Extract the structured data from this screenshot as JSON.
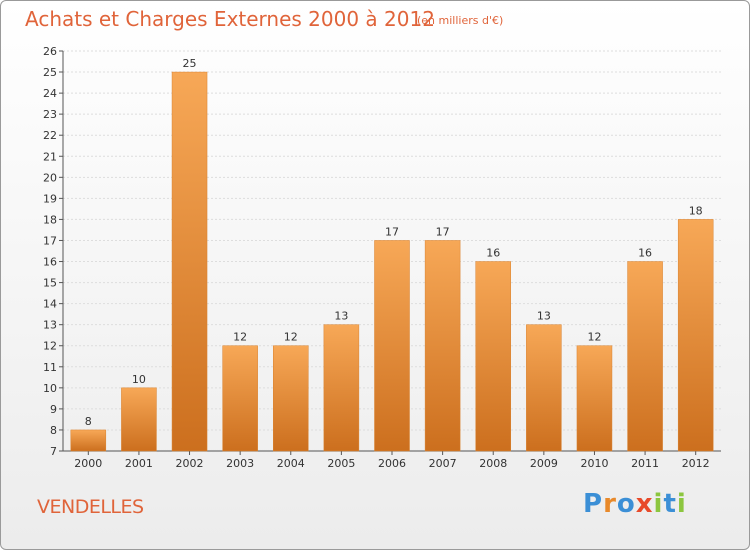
{
  "title": "Achats et Charges Externes 2000 à 2012",
  "subtitle": "(en milliers d'€)",
  "commune": "VENDELLES",
  "logo": {
    "letters": [
      "P",
      "r",
      "o",
      "x",
      "i",
      "t",
      "i"
    ],
    "colors": [
      "#3b8fd6",
      "#e8892a",
      "#3b8fd6",
      "#e84a2a",
      "#8cc63f",
      "#3b8fd6",
      "#8cc63f"
    ]
  },
  "colors": {
    "accent": "#e0643a",
    "bar_light": "#f7a857",
    "bar_dark": "#cc6f1e"
  },
  "chart_data": {
    "type": "bar",
    "categories": [
      "2000",
      "2001",
      "2002",
      "2003",
      "2004",
      "2005",
      "2006",
      "2007",
      "2008",
      "2009",
      "2010",
      "2011",
      "2012"
    ],
    "values": [
      8,
      10,
      25,
      12,
      12,
      13,
      17,
      17,
      16,
      13,
      12,
      16,
      18
    ],
    "ylim": [
      7,
      26
    ],
    "yticks": [
      7,
      8,
      9,
      10,
      11,
      12,
      13,
      14,
      15,
      16,
      17,
      18,
      19,
      20,
      21,
      22,
      23,
      24,
      25,
      26
    ],
    "grid": true
  }
}
